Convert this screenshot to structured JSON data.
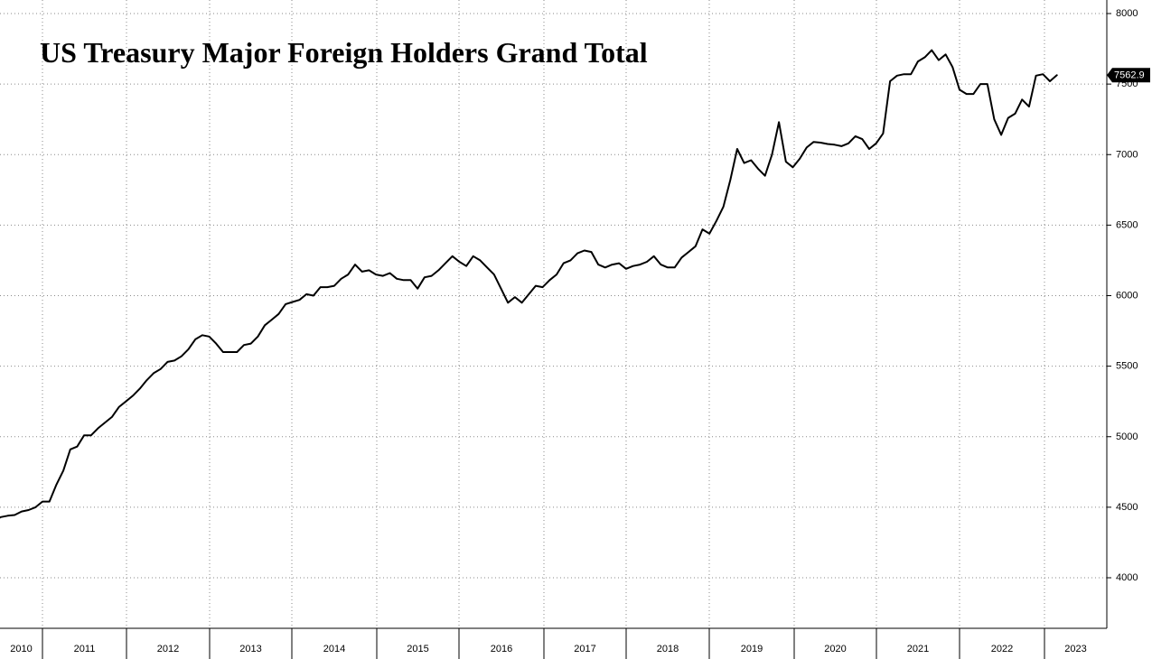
{
  "chart_data": {
    "type": "line",
    "title": "US Treasury Major Foreign Holders Grand Total",
    "xlabel": "",
    "ylabel": "",
    "ylim": [
      3650,
      8050
    ],
    "yticks": [
      4000,
      4500,
      5000,
      5500,
      6000,
      6500,
      7000,
      7500,
      8000
    ],
    "x_tick_labels": [
      "2010",
      "2011",
      "2012",
      "2013",
      "2014",
      "2015",
      "2016",
      "2017",
      "2018",
      "2019",
      "2020",
      "2021",
      "2022",
      "2023"
    ],
    "grid": true,
    "y_axis_side": "right",
    "last_value_label": "7562.9",
    "series": [
      {
        "start": "2010-01",
        "frequency": "monthly",
        "values": [
          4000,
          4120,
          4270,
          4320,
          4360,
          4400,
          4430,
          4440,
          4445,
          4470,
          4480,
          4500,
          4540,
          4540,
          4660,
          4760,
          4910,
          4930,
          5010,
          5010,
          5060,
          5100,
          5140,
          5210,
          5250,
          5290,
          5340,
          5400,
          5450,
          5480,
          5530,
          5540,
          5570,
          5620,
          5690,
          5720,
          5710,
          5660,
          5600,
          5600,
          5600,
          5650,
          5660,
          5710,
          5790,
          5830,
          5870,
          5940,
          5955,
          5970,
          6010,
          6000,
          6060,
          6060,
          6070,
          6120,
          6150,
          6220,
          6170,
          6180,
          6150,
          6140,
          6160,
          6120,
          6110,
          6110,
          6050,
          6130,
          6140,
          6180,
          6230,
          6280,
          6240,
          6210,
          6280,
          6250,
          6200,
          6150,
          6050,
          5950,
          5990,
          5950,
          6010,
          6070,
          6060,
          6110,
          6150,
          6230,
          6250,
          6300,
          6320,
          6310,
          6220,
          6200,
          6220,
          6230,
          6190,
          6210,
          6220,
          6240,
          6280,
          6220,
          6200,
          6200,
          6270,
          6310,
          6350,
          6470,
          6440,
          6530,
          6630,
          6820,
          7040,
          6940,
          6960,
          6900,
          6850,
          7000,
          7230,
          6950,
          6910,
          6970,
          7050,
          7090,
          7085,
          7075,
          7070,
          7060,
          7080,
          7130,
          7110,
          7040,
          7080,
          7150,
          7520,
          7560,
          7570,
          7570,
          7660,
          7690,
          7740,
          7670,
          7710,
          7620,
          7460,
          7430,
          7430,
          7500,
          7500,
          7250,
          7140,
          7260,
          7290,
          7390,
          7340,
          7560,
          7570,
          7520,
          7562.9
        ]
      }
    ]
  },
  "colors": {
    "line": "#000000",
    "grid": "#8a8a8a",
    "background": "#ffffff",
    "last_value_badge": "#000000"
  }
}
